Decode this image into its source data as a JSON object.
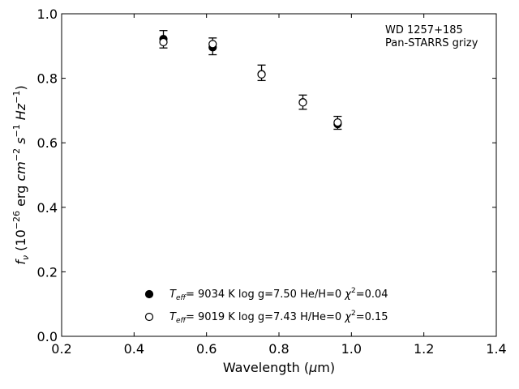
{
  "chart_data": {
    "type": "scatter",
    "xlabel_main": "Wavelength (",
    "xlabel_mu": "μ",
    "xlabel_tail": "m)",
    "ylabel_f": "f",
    "ylabel_nu": "ν",
    "ylabel_open": " (10",
    "ylabel_exp": "−26",
    "ylabel_erg": " erg ",
    "ylabel_cm": "cm",
    "ylabel_cm_exp": "−2",
    "ylabel_s": " s",
    "ylabel_s_exp": "−1",
    "ylabel_hz": " Hz",
    "ylabel_hz_exp": "−1",
    "ylabel_close": ")",
    "xlim": [
      0.2,
      1.4
    ],
    "ylim": [
      0.0,
      1.0
    ],
    "x_ticks": [
      0.2,
      0.4,
      0.6,
      0.8,
      1.0,
      1.2,
      1.4
    ],
    "x_tick_labels": [
      "0.2",
      "0.4",
      "0.6",
      "0.8",
      "1.0",
      "1.2",
      "1.4"
    ],
    "y_ticks": [
      0.0,
      0.2,
      0.4,
      0.6,
      0.8,
      1.0
    ],
    "y_tick_labels": [
      "0.0",
      "0.2",
      "0.4",
      "0.6",
      "0.8",
      "1.0"
    ],
    "annotation_line1": "WD 1257+185",
    "annotation_line2": "Pan-STARRS grizy",
    "grid": false,
    "legend_position": "bottom-center",
    "observed": {
      "x": [
        0.481,
        0.617,
        0.752,
        0.866,
        0.962
      ],
      "y": [
        0.921,
        0.899,
        0.817,
        0.726,
        0.662
      ],
      "yerr": [
        0.027,
        0.026,
        0.024,
        0.022,
        0.02
      ]
    },
    "series": [
      {
        "marker": "filled-circle",
        "label_T": "T",
        "label_eff": "eff",
        "label_teff": "=  9034 K  log g=7.50  He/H=0  ",
        "label_chi": "χ",
        "label_chi_exp": "2",
        "label_chi_val": "=0.04",
        "x": [
          0.481,
          0.617,
          0.752,
          0.866,
          0.962
        ],
        "y": [
          0.922,
          0.896,
          0.813,
          0.726,
          0.658
        ]
      },
      {
        "marker": "open-circle",
        "label_T": "T",
        "label_eff": "eff",
        "label_teff": "=  9019 K  log g=7.43  H/He=0  ",
        "label_chi": "χ",
        "label_chi_exp": "2",
        "label_chi_val": "=0.15",
        "x": [
          0.481,
          0.617,
          0.752,
          0.866,
          0.962
        ],
        "y": [
          0.912,
          0.906,
          0.812,
          0.725,
          0.663
        ]
      }
    ]
  }
}
